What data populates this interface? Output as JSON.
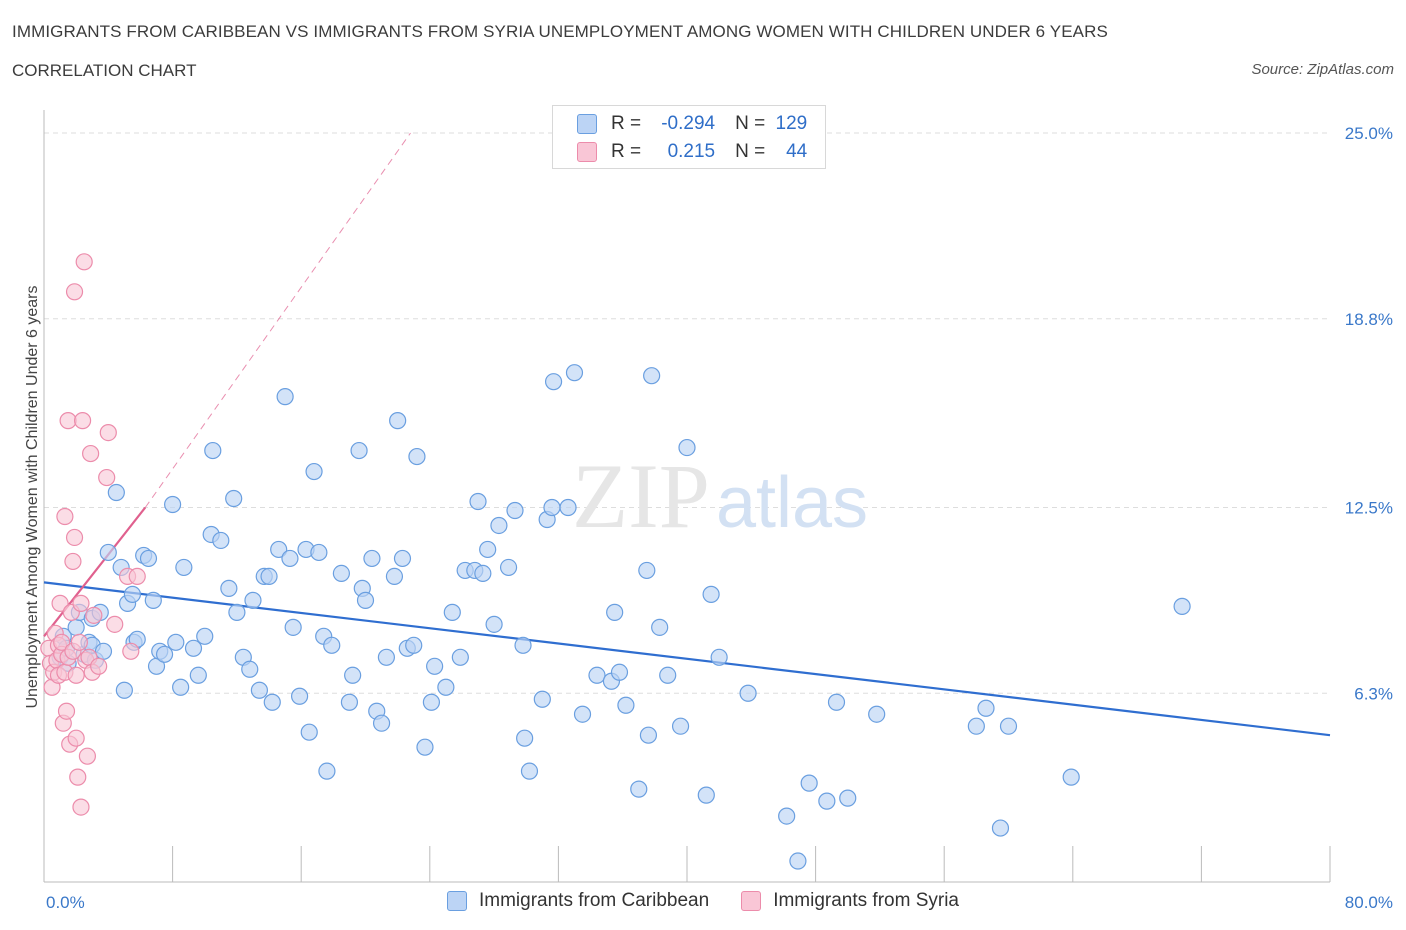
{
  "header": {
    "title": "IMMIGRANTS FROM CARIBBEAN VS IMMIGRANTS FROM SYRIA UNEMPLOYMENT AMONG WOMEN WITH CHILDREN UNDER 6 YEARS",
    "subtitle": "CORRELATION CHART",
    "source": "Source: ZipAtlas.com"
  },
  "legend": {
    "rows": [
      {
        "r_label": "R =",
        "r_value": "-0.294",
        "n_label": "N =",
        "n_value": "129"
      },
      {
        "r_label": "R =",
        "r_value": "0.215",
        "n_label": "N =",
        "n_value": "44"
      }
    ]
  },
  "bottom_legend": {
    "caribbean": "Immigrants from Caribbean",
    "syria": "Immigrants from Syria"
  },
  "colors": {
    "caribbean_fill": "#bcd4f5",
    "caribbean_stroke": "#6a9fe0",
    "caribbean_line": "#2f6ed0",
    "syria_fill": "#f9c6d6",
    "syria_stroke": "#ec8cab",
    "syria_line": "#e0608e",
    "axis_text": "#3a78c9",
    "grid": "#dddddd"
  },
  "chart_data": {
    "type": "scatter",
    "xlabel": "",
    "ylabel": "Unemployment Among Women with Children Under 6 years",
    "xlim": [
      0,
      80
    ],
    "ylim": [
      0,
      25
    ],
    "x_tick_labels": [
      "0.0%",
      "80.0%"
    ],
    "y_ticks": [
      {
        "value": 6.3,
        "label": "6.3%"
      },
      {
        "value": 12.5,
        "label": "12.5%"
      },
      {
        "value": 18.8,
        "label": "18.8%"
      },
      {
        "value": 25.0,
        "label": "25.0%"
      }
    ],
    "grid": "horizontal dashed",
    "watermark": "ZIPatlas",
    "series": [
      {
        "name": "Immigrants from Caribbean",
        "color": "#bcd4f5",
        "trend": {
          "x0": 0,
          "y0": 10.0,
          "x1": 80,
          "y1": 4.9
        },
        "points": [
          [
            1.0,
            7.5
          ],
          [
            1.2,
            8.2
          ],
          [
            1.4,
            7.8
          ],
          [
            1.5,
            7.3
          ],
          [
            2.0,
            8.5
          ],
          [
            2.2,
            9.0
          ],
          [
            2.5,
            7.6
          ],
          [
            2.8,
            8.0
          ],
          [
            3.0,
            8.8
          ],
          [
            3.2,
            7.4
          ],
          [
            3.5,
            9.0
          ],
          [
            3.0,
            7.9
          ],
          [
            3.7,
            7.7
          ],
          [
            4.0,
            11.0
          ],
          [
            4.5,
            13.0
          ],
          [
            4.8,
            10.5
          ],
          [
            5.0,
            6.4
          ],
          [
            5.2,
            9.3
          ],
          [
            5.5,
            9.6
          ],
          [
            5.6,
            8.0
          ],
          [
            5.8,
            8.1
          ],
          [
            6.2,
            10.9
          ],
          [
            6.5,
            10.8
          ],
          [
            6.8,
            9.4
          ],
          [
            7.0,
            7.2
          ],
          [
            7.2,
            7.7
          ],
          [
            7.5,
            7.6
          ],
          [
            8.0,
            12.6
          ],
          [
            8.2,
            8.0
          ],
          [
            8.5,
            6.5
          ],
          [
            8.7,
            10.5
          ],
          [
            9.3,
            7.8
          ],
          [
            9.6,
            6.9
          ],
          [
            10.0,
            8.2
          ],
          [
            10.4,
            11.6
          ],
          [
            10.5,
            14.4
          ],
          [
            11.0,
            11.4
          ],
          [
            11.5,
            9.8
          ],
          [
            11.8,
            12.8
          ],
          [
            12.0,
            9.0
          ],
          [
            12.4,
            7.5
          ],
          [
            12.8,
            7.1
          ],
          [
            13.0,
            9.4
          ],
          [
            13.4,
            6.4
          ],
          [
            13.7,
            10.2
          ],
          [
            14.0,
            10.2
          ],
          [
            14.2,
            6.0
          ],
          [
            14.6,
            11.1
          ],
          [
            15.0,
            16.2
          ],
          [
            15.3,
            10.8
          ],
          [
            15.5,
            8.5
          ],
          [
            15.9,
            6.2
          ],
          [
            16.3,
            11.1
          ],
          [
            16.5,
            5.0
          ],
          [
            16.8,
            13.7
          ],
          [
            17.1,
            11.0
          ],
          [
            17.4,
            8.2
          ],
          [
            17.6,
            3.7
          ],
          [
            17.9,
            7.9
          ],
          [
            18.5,
            10.3
          ],
          [
            19.0,
            6.0
          ],
          [
            19.2,
            6.9
          ],
          [
            19.6,
            14.4
          ],
          [
            19.8,
            9.8
          ],
          [
            20.0,
            9.4
          ],
          [
            20.4,
            10.8
          ],
          [
            20.7,
            5.7
          ],
          [
            21.0,
            5.3
          ],
          [
            21.3,
            7.5
          ],
          [
            21.8,
            10.2
          ],
          [
            22.0,
            15.4
          ],
          [
            22.3,
            10.8
          ],
          [
            22.6,
            7.8
          ],
          [
            23.0,
            7.9
          ],
          [
            23.2,
            14.2
          ],
          [
            23.7,
            4.5
          ],
          [
            24.1,
            6.0
          ],
          [
            24.3,
            7.2
          ],
          [
            25.0,
            6.5
          ],
          [
            25.4,
            9.0
          ],
          [
            25.9,
            7.5
          ],
          [
            26.2,
            10.4
          ],
          [
            26.8,
            10.4
          ],
          [
            27.0,
            12.7
          ],
          [
            27.3,
            10.3
          ],
          [
            27.6,
            11.1
          ],
          [
            28.0,
            8.6
          ],
          [
            28.3,
            11.9
          ],
          [
            28.9,
            10.5
          ],
          [
            29.3,
            12.4
          ],
          [
            29.8,
            7.9
          ],
          [
            29.9,
            4.8
          ],
          [
            30.2,
            3.7
          ],
          [
            31.0,
            6.1
          ],
          [
            31.3,
            12.1
          ],
          [
            31.6,
            12.5
          ],
          [
            31.7,
            16.7
          ],
          [
            32.6,
            12.5
          ],
          [
            33.0,
            17.0
          ],
          [
            33.5,
            5.6
          ],
          [
            34.4,
            6.9
          ],
          [
            35.3,
            6.7
          ],
          [
            35.5,
            9.0
          ],
          [
            35.8,
            7.0
          ],
          [
            36.2,
            5.9
          ],
          [
            37.0,
            3.1
          ],
          [
            37.5,
            10.4
          ],
          [
            37.6,
            4.9
          ],
          [
            37.8,
            16.9
          ],
          [
            38.3,
            8.5
          ],
          [
            38.8,
            6.9
          ],
          [
            39.6,
            5.2
          ],
          [
            40.0,
            14.5
          ],
          [
            41.2,
            2.9
          ],
          [
            41.5,
            9.6
          ],
          [
            42.0,
            7.5
          ],
          [
            43.8,
            6.3
          ],
          [
            46.2,
            2.2
          ],
          [
            47.6,
            3.3
          ],
          [
            48.7,
            2.7
          ],
          [
            49.3,
            6.0
          ],
          [
            50.0,
            2.8
          ],
          [
            51.8,
            5.6
          ],
          [
            58.6,
            5.8
          ],
          [
            58.0,
            5.2
          ],
          [
            60.0,
            5.2
          ],
          [
            59.5,
            1.8
          ],
          [
            63.9,
            3.5
          ],
          [
            70.8,
            9.2
          ],
          [
            46.9,
            0.7
          ]
        ]
      },
      {
        "name": "Immigrants from Syria",
        "color": "#f9c6d6",
        "trend": {
          "x0": 0,
          "y0": 8.2,
          "x1": 6.3,
          "y1": 12.5
        },
        "trend_extension": {
          "x0": 6.3,
          "y0": 12.5,
          "x1": 22.8,
          "y1": 25.0
        },
        "points": [
          [
            0.3,
            7.8
          ],
          [
            0.4,
            7.3
          ],
          [
            0.5,
            6.5
          ],
          [
            0.6,
            7.0
          ],
          [
            0.7,
            8.3
          ],
          [
            0.8,
            7.4
          ],
          [
            0.9,
            7.9
          ],
          [
            0.9,
            6.9
          ],
          [
            1.0,
            9.3
          ],
          [
            1.1,
            7.6
          ],
          [
            1.1,
            8.0
          ],
          [
            1.2,
            5.3
          ],
          [
            1.3,
            12.2
          ],
          [
            1.3,
            7.0
          ],
          [
            1.4,
            5.7
          ],
          [
            1.5,
            7.5
          ],
          [
            1.5,
            15.4
          ],
          [
            1.6,
            4.6
          ],
          [
            1.7,
            9.0
          ],
          [
            1.8,
            7.7
          ],
          [
            1.8,
            10.7
          ],
          [
            1.9,
            11.5
          ],
          [
            1.9,
            19.7
          ],
          [
            2.0,
            4.8
          ],
          [
            2.0,
            6.9
          ],
          [
            2.1,
            3.5
          ],
          [
            2.2,
            8.0
          ],
          [
            2.3,
            9.3
          ],
          [
            2.3,
            2.5
          ],
          [
            2.4,
            15.4
          ],
          [
            2.5,
            20.7
          ],
          [
            2.6,
            7.4
          ],
          [
            2.7,
            4.2
          ],
          [
            2.8,
            7.5
          ],
          [
            2.9,
            14.3
          ],
          [
            3.0,
            7.0
          ],
          [
            3.1,
            8.9
          ],
          [
            3.4,
            7.2
          ],
          [
            3.9,
            13.5
          ],
          [
            4.0,
            15.0
          ],
          [
            4.4,
            8.6
          ],
          [
            5.2,
            10.2
          ],
          [
            5.4,
            7.7
          ],
          [
            5.8,
            10.2
          ]
        ]
      }
    ]
  }
}
